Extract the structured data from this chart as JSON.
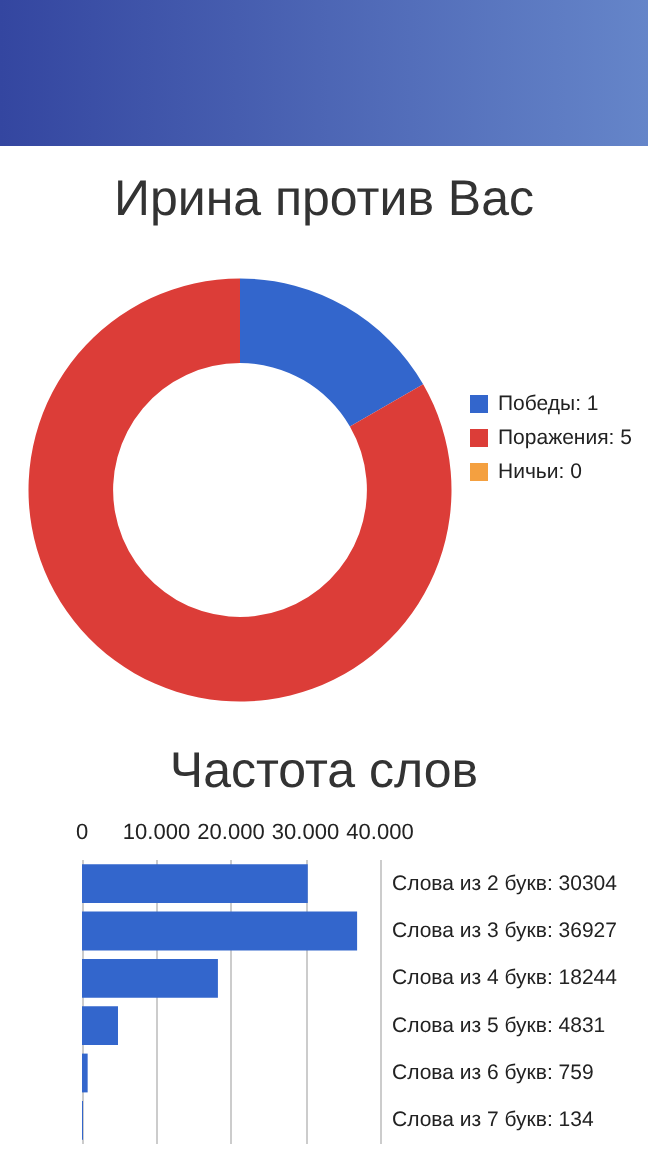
{
  "chart_data": [
    {
      "type": "donut",
      "title": "Ирина против Вас",
      "categories": [
        "Победы: 1",
        "Поражения: 5",
        "Ничьи: 0"
      ],
      "values": [
        1,
        5,
        0
      ],
      "colors": [
        "#3366cc",
        "#dc3d38",
        "#f4a040"
      ],
      "legend": "right"
    },
    {
      "type": "bar",
      "orientation": "horizontal",
      "title": "Частота слов",
      "categories": [
        "Слова из 2 букв: 30304",
        "Слова из 3 букв: 36927",
        "Слова из 4 букв: 18244",
        "Слова из 5 букв: 4831",
        "Слова из 6 букв: 759",
        "Слова из 7 букв: 134"
      ],
      "series": [
        {
          "color": "#3366cc",
          "values": [
            30304,
            36927,
            18244,
            4831,
            759,
            134
          ]
        }
      ],
      "xlim": [
        0,
        40000
      ],
      "xticks": [
        0,
        {
          "value": 10000,
          "label": "10.000"
        },
        {
          "value": 20000,
          "label": "20.000"
        },
        {
          "value": 30000,
          "label": "30.000"
        },
        {
          "value": 40000,
          "label": "40.000"
        }
      ],
      "grid": "x",
      "legend": false
    }
  ]
}
